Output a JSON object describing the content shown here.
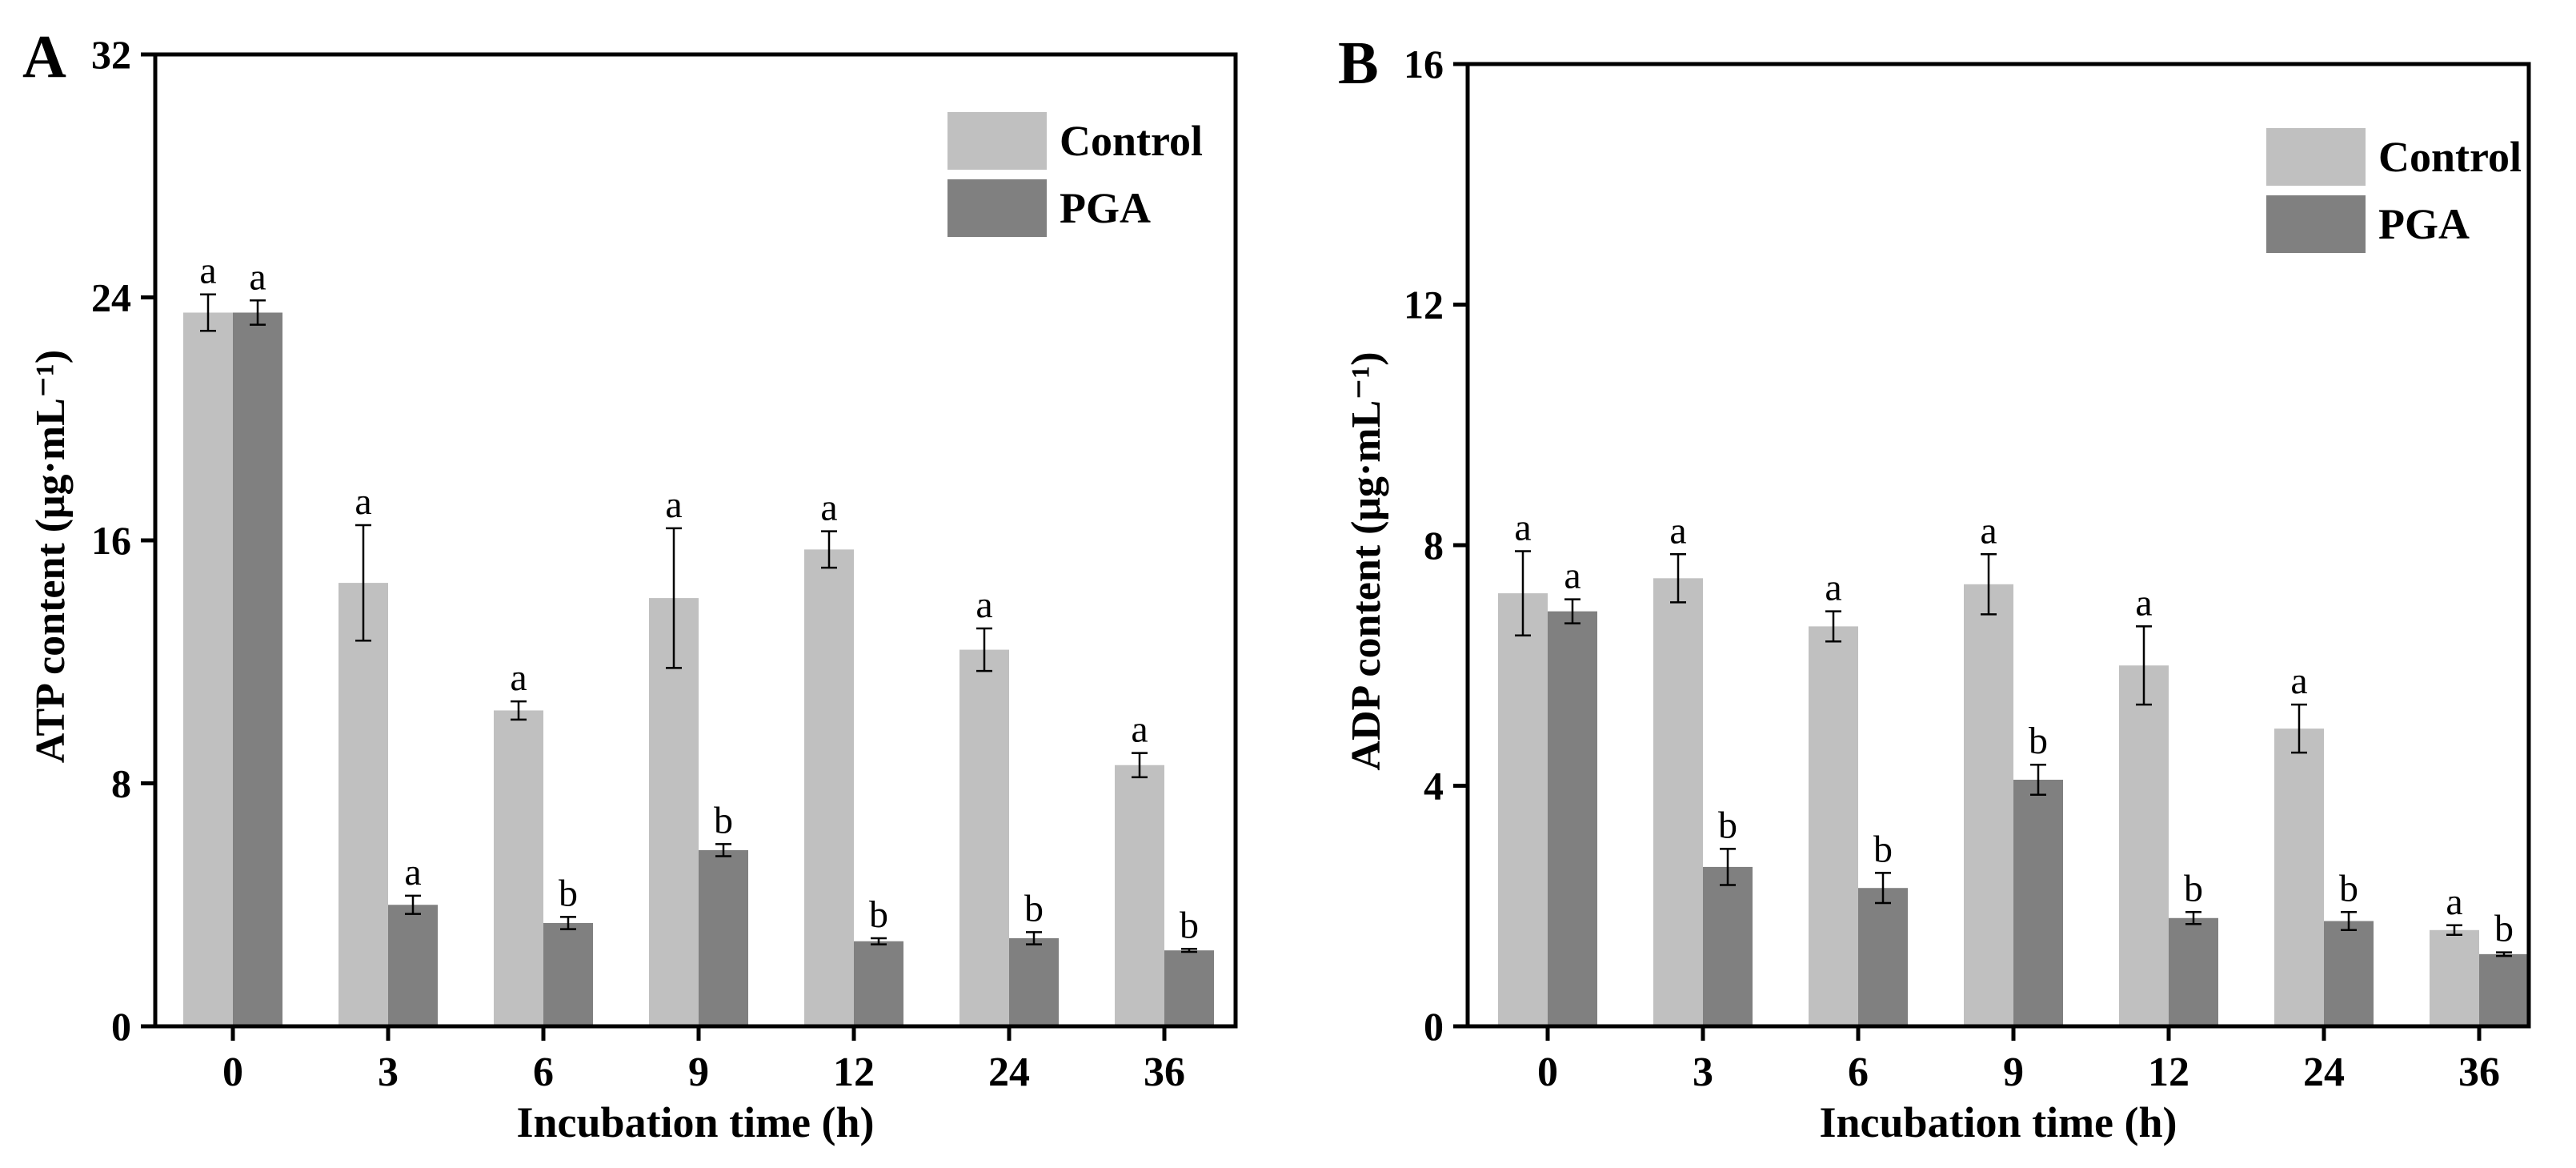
{
  "chart_data": [
    {
      "panel_label": "A",
      "type": "bar",
      "title": "",
      "xlabel": "Incubation time (h)",
      "ylabel": "ATP  content (μg·mL⁻¹)",
      "ylim": [
        0,
        32
      ],
      "yticks": [
        "0",
        "8",
        "16",
        "24",
        "32"
      ],
      "categories": [
        "0",
        "3",
        "6",
        "9",
        "12",
        "24",
        "36"
      ],
      "legend_position": "top-right",
      "grid": false,
      "series": [
        {
          "name": "Control",
          "color": "#c0c0c0",
          "values": [
            23.5,
            14.6,
            10.4,
            14.1,
            15.7,
            12.4,
            8.6
          ],
          "errors": [
            0.6,
            1.9,
            0.3,
            2.3,
            0.6,
            0.7,
            0.4
          ],
          "letters": [
            "a",
            "a",
            "a",
            "a",
            "a",
            "a",
            "a"
          ]
        },
        {
          "name": "PGA",
          "color": "#808080",
          "values": [
            23.5,
            4.0,
            3.4,
            5.8,
            2.8,
            2.9,
            2.5
          ],
          "errors": [
            0.4,
            0.3,
            0.2,
            0.2,
            0.1,
            0.2,
            0.05
          ],
          "letters": [
            "a",
            "a",
            "b",
            "b",
            "b",
            "b",
            "b"
          ]
        }
      ]
    },
    {
      "panel_label": "B",
      "type": "bar",
      "title": "",
      "xlabel": "Incubation time (h)",
      "ylabel": "ADP content (μg·mL⁻¹)",
      "ylim": [
        0,
        16
      ],
      "yticks": [
        "0",
        "4",
        "8",
        "12",
        "16"
      ],
      "categories": [
        "0",
        "3",
        "6",
        "9",
        "12",
        "24",
        "36"
      ],
      "legend_position": "top-right",
      "grid": false,
      "series": [
        {
          "name": "Control",
          "color": "#c0c0c0",
          "values": [
            7.2,
            7.45,
            6.65,
            7.35,
            6.0,
            4.95,
            1.6
          ],
          "errors": [
            0.7,
            0.4,
            0.25,
            0.5,
            0.65,
            0.4,
            0.08
          ],
          "letters": [
            "a",
            "a",
            "a",
            "a",
            "a",
            "a",
            "a"
          ]
        },
        {
          "name": "PGA",
          "color": "#808080",
          "values": [
            6.9,
            2.65,
            2.3,
            4.1,
            1.8,
            1.75,
            1.2
          ],
          "errors": [
            0.2,
            0.3,
            0.25,
            0.25,
            0.1,
            0.15,
            0.03
          ],
          "letters": [
            "a",
            "b",
            "b",
            "b",
            "b",
            "b",
            "b"
          ]
        }
      ]
    }
  ]
}
